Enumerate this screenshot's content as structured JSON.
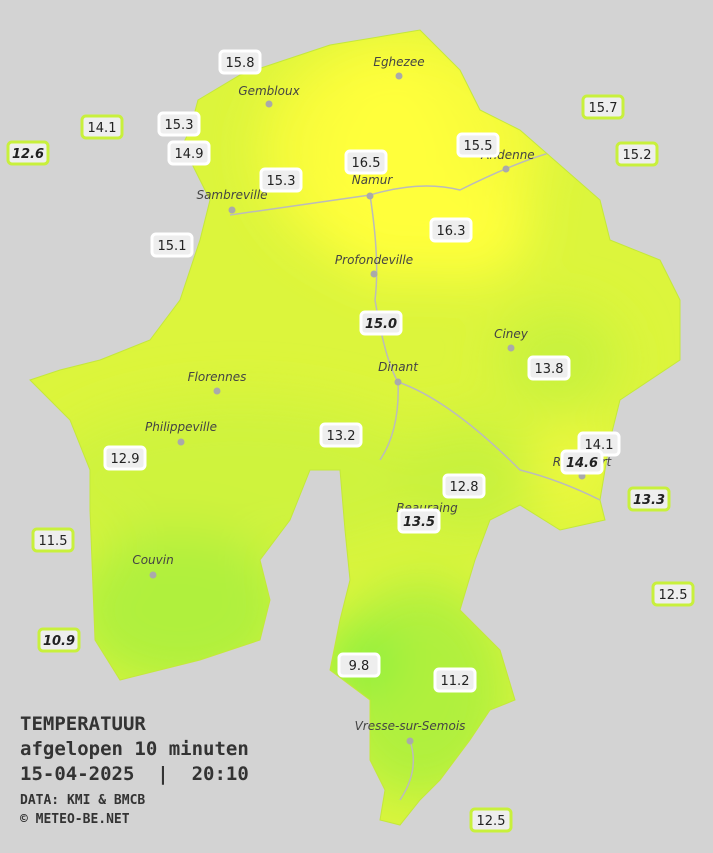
{
  "title": {
    "line1": "TEMPERATUUR",
    "line2": "afgelopen 10 minuten",
    "line3": "15-04-2025  |  20:10",
    "source": "DATA: KMI & BMCB",
    "copyright": "© METEO-BE.NET"
  },
  "towns": [
    "Eghezee",
    "Gembloux",
    "Andenne",
    "Namur",
    "Sambreville",
    "Profondeville",
    "Ciney",
    "Dinant",
    "Florennes",
    "Philippeville",
    "Rochefort",
    "Beauraing",
    "Couvin",
    "Vresse-sur-Semois"
  ],
  "stations": [
    "15.8",
    "14.1",
    "15.3",
    "12.6",
    "14.9",
    "15.3",
    "16.5",
    "15.5",
    "15.7",
    "15.2",
    "16.3",
    "15.1",
    "15.0",
    "13.8",
    "13.2",
    "12.9",
    "14.1",
    "14.6",
    "12.8",
    "13.5",
    "13.3",
    "11.5",
    "12.5",
    "10.9",
    "9.8",
    "11.2",
    "12.5"
  ]
}
